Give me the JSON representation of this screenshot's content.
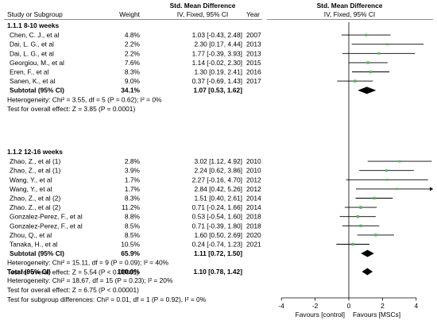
{
  "chart_data": {
    "type": "forest",
    "title": "Std. Mean Difference",
    "header": {
      "study": "Study or Subgroup",
      "weight": "Weight",
      "smd_top": "Std. Mean Difference",
      "smd": "IV, Fixed, 95% CI",
      "year": "Year",
      "plot_top": "Std. Mean Difference",
      "plot": "IV, Fixed, 95% CI"
    },
    "subgroups": [
      {
        "title": "1.1.1 8-10 weeks",
        "studies": [
          {
            "name": "Chen, C. J., et al",
            "weight": "4.8%",
            "ci_text": "1.03 [-0.43, 2.48]",
            "year": "2007",
            "est": 1.03,
            "lo": -0.43,
            "hi": 2.48
          },
          {
            "name": "Dai, L. G., et al",
            "weight": "2.2%",
            "ci_text": "2.30 [0.17, 4.44]",
            "year": "2013",
            "est": 2.3,
            "lo": 0.17,
            "hi": 4.44
          },
          {
            "name": "Dai, L. G., et al",
            "weight": "2.2%",
            "ci_text": "1.77 [-0.39, 3.93]",
            "year": "2013",
            "est": 1.77,
            "lo": -0.39,
            "hi": 3.93
          },
          {
            "name": "Georgiou, M., et al",
            "weight": "7.6%",
            "ci_text": "1.14 [-0.02, 2.30]",
            "year": "2015",
            "est": 1.14,
            "lo": -0.02,
            "hi": 2.3
          },
          {
            "name": "Eren, F., et al",
            "weight": "8.3%",
            "ci_text": "1.30 [0.19, 2.41]",
            "year": "2016",
            "est": 1.3,
            "lo": 0.19,
            "hi": 2.41
          },
          {
            "name": "Sanen, K., et al",
            "weight": "9.0%",
            "ci_text": "0.37 [-0.69, 1.43]",
            "year": "2017",
            "est": 0.37,
            "lo": -0.69,
            "hi": 1.43
          }
        ],
        "subtotal": {
          "label": "Subtotal (95% CI)",
          "weight": "34.1%",
          "ci_text": "1.07 [0.53, 1.62]",
          "est": 1.07,
          "lo": 0.53,
          "hi": 1.62
        },
        "heterogeneity": "Heterogeneity: Chi² = 3.55, df = 5 (P = 0.62); I² = 0%",
        "overall_effect": "Test for overall effect: Z = 3.85 (P = 0.0001)"
      },
      {
        "title": "1.1.2 12-16 weeks",
        "studies": [
          {
            "name": "Zhao, Z., et al (1)",
            "weight": "2.8%",
            "ci_text": "3.02 [1.12, 4.92]",
            "year": "2010",
            "est": 3.02,
            "lo": 1.12,
            "hi": 4.92
          },
          {
            "name": "Zhao, Z., et al (1)",
            "weight": "3.9%",
            "ci_text": "2.24 [0.62, 3.86]",
            "year": "2010",
            "est": 2.24,
            "lo": 0.62,
            "hi": 3.86
          },
          {
            "name": "Wang, Y., et al",
            "weight": "1.7%",
            "ci_text": "2.27 [-0.16, 4.70]",
            "year": "2012",
            "est": 2.27,
            "lo": -0.16,
            "hi": 4.7
          },
          {
            "name": "Wang, Y., et al",
            "weight": "1.7%",
            "ci_text": "2.84 [0.42, 5.26]",
            "year": "2012",
            "est": 2.84,
            "lo": 0.42,
            "hi": 5.26
          },
          {
            "name": "Zhao, Z., et al (2)",
            "weight": "8.3%",
            "ci_text": "1.51 [0.40, 2.61]",
            "year": "2014",
            "est": 1.51,
            "lo": 0.4,
            "hi": 2.61
          },
          {
            "name": "Zhao, Z., et al (2)",
            "weight": "11.2%",
            "ci_text": "0.71 [-0.24, 1.66]",
            "year": "2014",
            "est": 0.71,
            "lo": -0.24,
            "hi": 1.66
          },
          {
            "name": "Gonzalez-Perez, F., et al",
            "weight": "8.8%",
            "ci_text": "0.53 [-0.54, 1.60]",
            "year": "2018",
            "est": 0.53,
            "lo": -0.54,
            "hi": 1.6
          },
          {
            "name": "Gonzalez-Perez, F., et al",
            "weight": "8.5%",
            "ci_text": "0.71 [-0.39, 1.80]",
            "year": "2018",
            "est": 0.71,
            "lo": -0.39,
            "hi": 1.8
          },
          {
            "name": "Zhou, Q., et al",
            "weight": "8.5%",
            "ci_text": "1.60 [0.50, 2.69]",
            "year": "2020",
            "est": 1.6,
            "lo": 0.5,
            "hi": 2.69
          },
          {
            "name": "Tanaka, H., et al",
            "weight": "10.5%",
            "ci_text": "0.24 [-0.74, 1.23]",
            "year": "2021",
            "est": 0.24,
            "lo": -0.74,
            "hi": 1.23
          }
        ],
        "subtotal": {
          "label": "Subtotal (95% CI)",
          "weight": "65.9%",
          "ci_text": "1.11 [0.72, 1.50]",
          "est": 1.11,
          "lo": 0.72,
          "hi": 1.5
        },
        "heterogeneity": "Heterogeneity: Chi² = 15.11, df = 9 (P = 0.09); I² = 40%",
        "overall_effect": "Test for overall effect: Z = 5.54 (P < 0.00001)"
      }
    ],
    "total": {
      "label": "Total (95% CI)",
      "weight": "100.0%",
      "ci_text": "1.10 [0.78, 1.42]",
      "est": 1.1,
      "lo": 0.78,
      "hi": 1.42,
      "heterogeneity": "Heterogeneity: Chi² = 18.67, df = 15 (P = 0.23); I² = 20%",
      "overall_effect": "Test for overall effect: Z = 6.75 (P < 0.00001)",
      "subgroup_diff": "Test for subgroup differences: Chi² = 0.01, df = 1 (P = 0.92), I² = 0%"
    },
    "axis": {
      "xlim": [
        -5,
        5
      ],
      "ticks": [
        -4,
        -2,
        0,
        2,
        4
      ],
      "left_label": "Favours [control]",
      "right_label": "Favours [MSCs]"
    },
    "colors": {
      "marker": "#4cbb5a",
      "diamond": "#000000",
      "line": "#000000",
      "rule": "#666666"
    }
  }
}
